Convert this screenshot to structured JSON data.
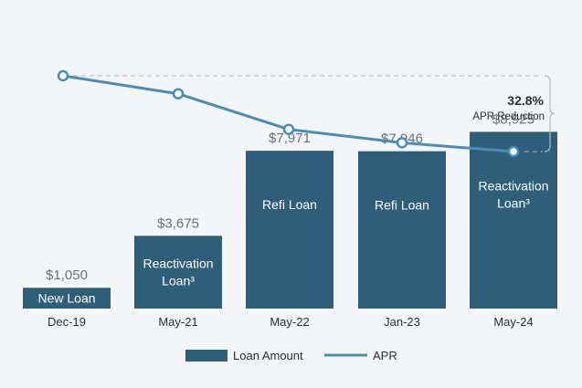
{
  "chart_data": {
    "type": "bar",
    "categories": [
      "Dec-19",
      "May-21",
      "May-22",
      "Jan-23",
      "May-24"
    ],
    "bar_labels": [
      "New Loan",
      "Reactivation Loan³",
      "Refi Loan",
      "Refi Loan",
      "Reactivation Loan³"
    ],
    "bar_label_lines": [
      [
        "New Loan"
      ],
      [
        "Reactivation",
        "Loan³"
      ],
      [
        "Refi Loan"
      ],
      [
        "Refi Loan"
      ],
      [
        "Reactivation",
        "Loan³"
      ]
    ],
    "series": [
      {
        "name": "Loan Amount",
        "type": "bar",
        "values": [
          1050,
          3675,
          7971,
          7946,
          8925
        ],
        "value_labels": [
          "$1,050",
          "$3,675",
          "$7,971",
          "$7,946",
          "$8,925"
        ]
      },
      {
        "name": "APR",
        "type": "line",
        "relative_values": [
          1.0,
          0.922,
          0.768,
          0.71,
          0.672
        ]
      }
    ],
    "annotation": {
      "value": "32.8%",
      "label": "APR Reduction"
    },
    "colors": {
      "bar": "#2f5e79",
      "line": "#4a8db5",
      "bar_text": "#ffffff",
      "value_text": "#6b7075",
      "axis_text": "#2b2f33",
      "bracket": "#b5b8bb",
      "background": "#f4f5f6"
    },
    "legend": {
      "placement": "bottom-center"
    }
  }
}
